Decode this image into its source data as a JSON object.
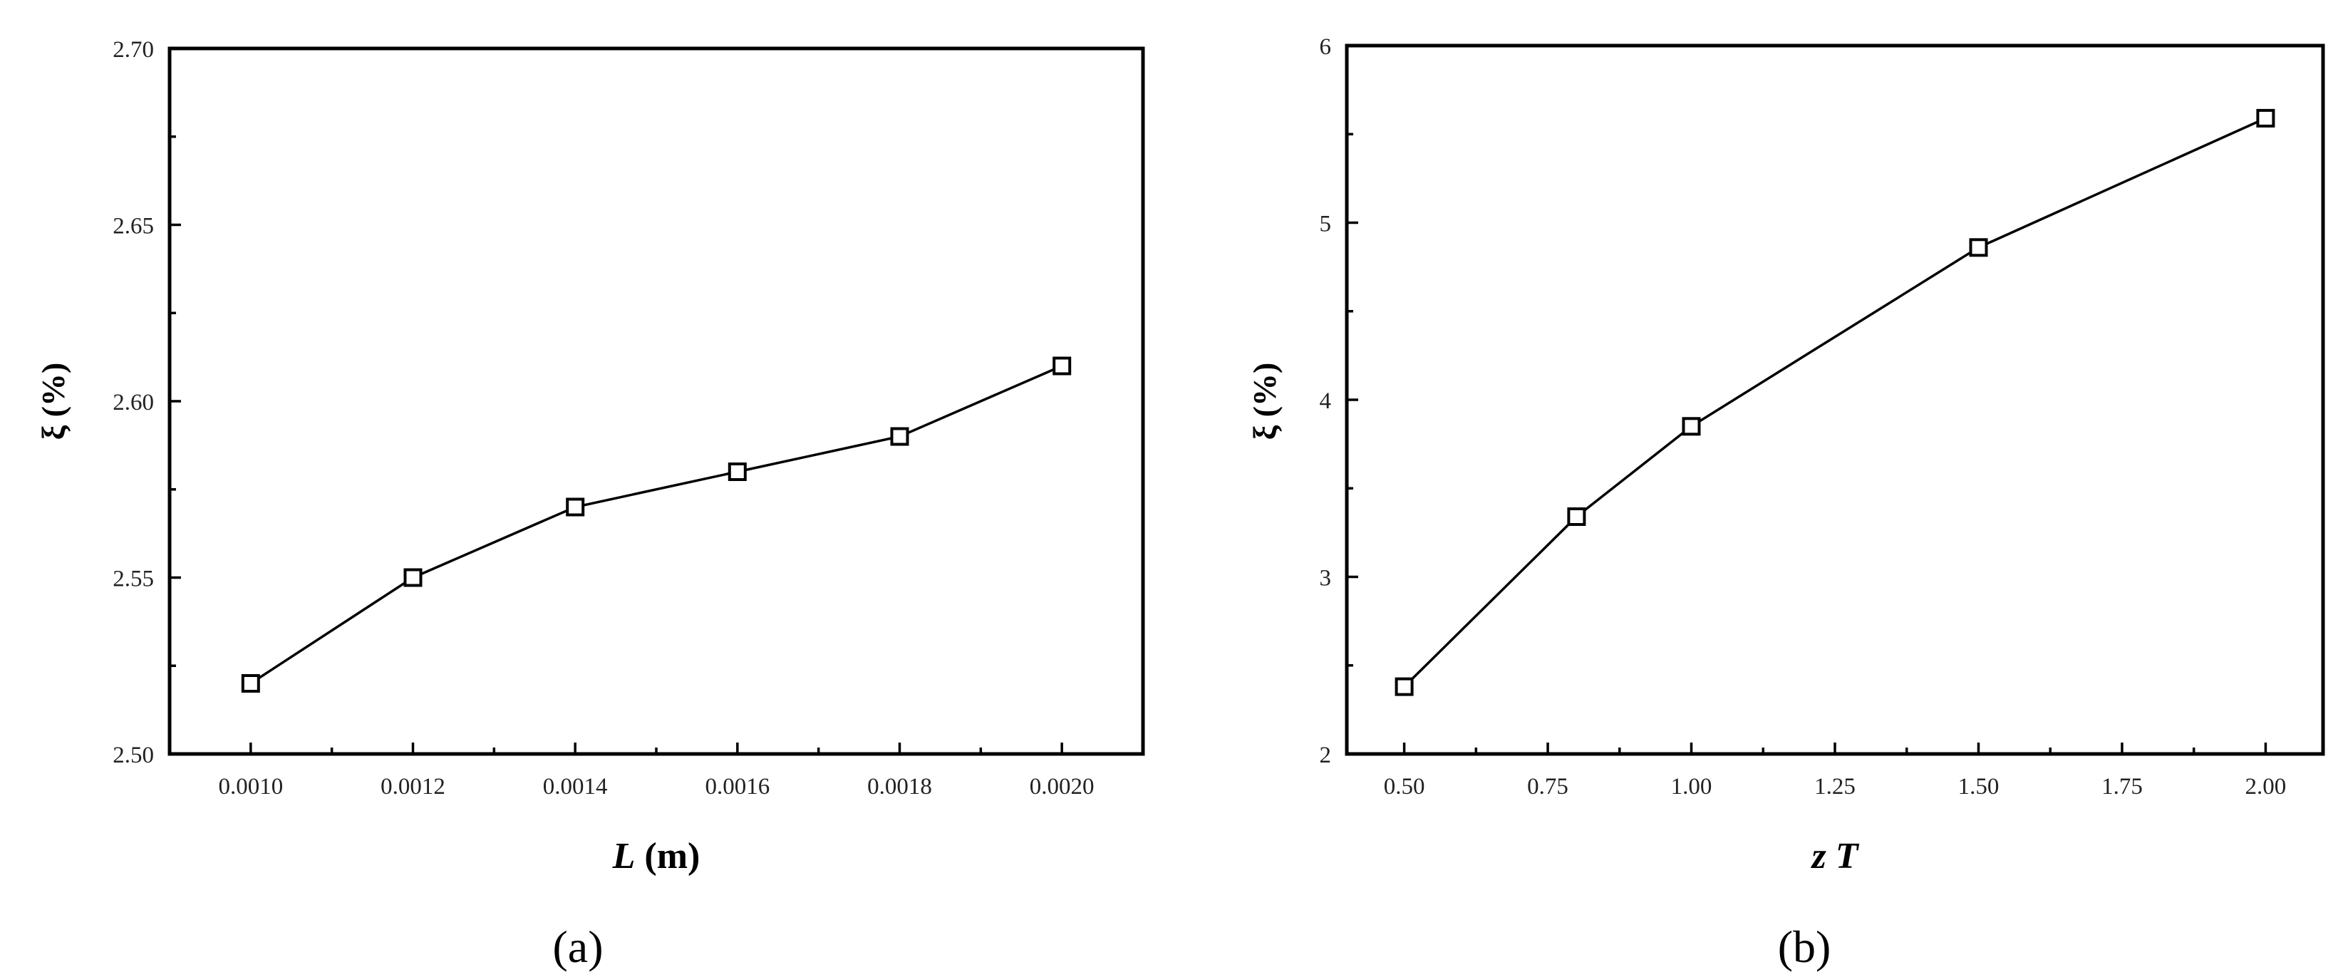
{
  "chart_data": [
    {
      "type": "line",
      "panel_label": "(a)",
      "title": "",
      "xlabel_var": "L",
      "xlabel_unit": " (m)",
      "ylabel": "ξ (%)",
      "xlim": [
        0.0009,
        0.0021
      ],
      "ylim": [
        2.5,
        2.7
      ],
      "xticks": [
        0.001,
        0.0012,
        0.0014,
        0.0016,
        0.0018,
        0.002
      ],
      "xtick_labels": [
        "0.0010",
        "0.0012",
        "0.0014",
        "0.0016",
        "0.0018",
        "0.0020"
      ],
      "yticks": [
        2.5,
        2.55,
        2.6,
        2.65,
        2.7
      ],
      "ytick_labels": [
        "2.50",
        "2.55",
        "2.60",
        "2.65",
        "2.70"
      ],
      "grid": false,
      "marker": "open-square",
      "series": [
        {
          "x": [
            0.001,
            0.0012,
            0.0014,
            0.0016,
            0.0018,
            0.002
          ],
          "y": [
            2.52,
            2.55,
            2.57,
            2.58,
            2.59,
            2.61
          ]
        }
      ]
    },
    {
      "type": "line",
      "panel_label": "(b)",
      "title": "",
      "xlabel_var": "z T",
      "xlabel_unit": "",
      "ylabel": "ξ (%)",
      "xlim": [
        0.4,
        2.1
      ],
      "ylim": [
        2,
        6
      ],
      "xticks": [
        0.5,
        0.75,
        1.0,
        1.25,
        1.5,
        1.75,
        2.0
      ],
      "xtick_labels": [
        "0.50",
        "0.75",
        "1.00",
        "1.25",
        "1.50",
        "1.75",
        "2.00"
      ],
      "yticks": [
        2,
        3,
        4,
        5,
        6
      ],
      "ytick_labels": [
        "2",
        "3",
        "4",
        "5",
        "6"
      ],
      "grid": false,
      "marker": "open-square",
      "series": [
        {
          "x": [
            0.5,
            0.8,
            1.0,
            1.5,
            2.0
          ],
          "y": [
            2.38,
            3.34,
            3.85,
            4.86,
            5.59
          ]
        }
      ]
    }
  ]
}
